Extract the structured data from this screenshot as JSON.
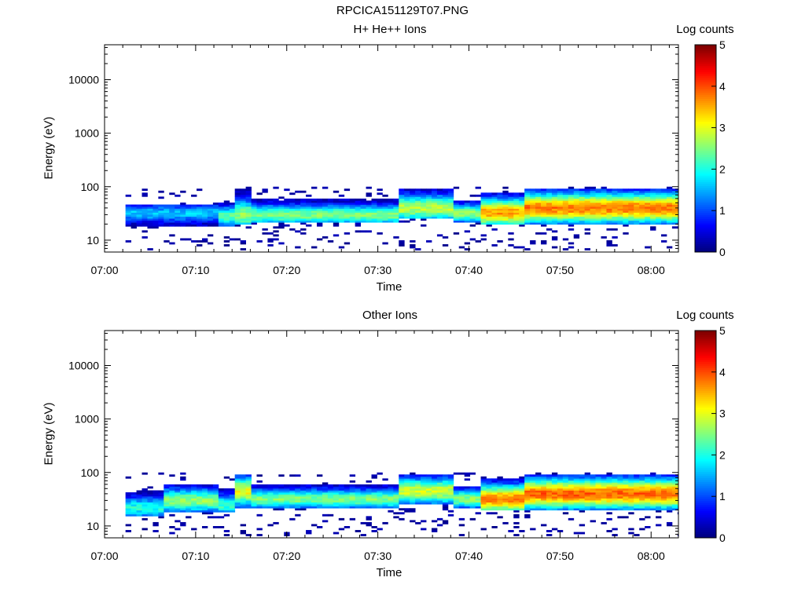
{
  "chart_data": [
    {
      "type": "heatmap",
      "figure_title": "RPCICA151129T07.PNG",
      "title": "H+ He++ Ions",
      "xlabel": "Time",
      "ylabel": "Energy (eV)",
      "colorbar_label": "Log counts",
      "x_ticks": [
        "07:00",
        "07:10",
        "07:20",
        "07:30",
        "07:40",
        "07:50",
        "08:00"
      ],
      "y_ticks": [
        "10",
        "100",
        "1000",
        "10000"
      ],
      "y_scale": "log",
      "ylim": [
        6,
        45000
      ],
      "xlim_minutes": [
        0,
        63
      ],
      "colorbar_ticks": [
        "0",
        "1",
        "2",
        "3",
        "4",
        "5"
      ],
      "clim": [
        0,
        5
      ],
      "segments": [
        {
          "t": [
            2.3,
            12
          ],
          "lo": 18,
          "hi": 45,
          "peak": 32,
          "max": 1.6
        },
        {
          "t": [
            12,
            14
          ],
          "lo": 18,
          "hi": 50,
          "peak": 28,
          "max": 2.3
        },
        {
          "t": [
            14,
            16
          ],
          "lo": 20,
          "hi": 90,
          "peak": 30,
          "max": 2.6
        },
        {
          "t": [
            16,
            32
          ],
          "lo": 22,
          "hi": 60,
          "peak": 30,
          "max": 2.5
        },
        {
          "t": [
            32,
            38
          ],
          "lo": 25,
          "hi": 95,
          "peak": 40,
          "max": 2.8
        },
        {
          "t": [
            38,
            41
          ],
          "lo": 22,
          "hi": 55,
          "peak": 32,
          "max": 2.6
        },
        {
          "t": [
            41,
            46
          ],
          "lo": 20,
          "hi": 80,
          "peak": 33,
          "max": 3.6
        },
        {
          "t": [
            46,
            63
          ],
          "lo": 20,
          "hi": 90,
          "peak": 40,
          "max": 3.8
        }
      ]
    },
    {
      "type": "heatmap",
      "title": "Other Ions",
      "xlabel": "Time",
      "ylabel": "Energy (eV)",
      "colorbar_label": "Log counts",
      "x_ticks": [
        "07:00",
        "07:10",
        "07:20",
        "07:30",
        "07:40",
        "07:50",
        "08:00"
      ],
      "y_ticks": [
        "10",
        "100",
        "1000",
        "10000"
      ],
      "y_scale": "log",
      "ylim": [
        6,
        45000
      ],
      "xlim_minutes": [
        0,
        63
      ],
      "colorbar_ticks": [
        "0",
        "1",
        "2",
        "3",
        "4",
        "5"
      ],
      "clim": [
        0,
        5
      ],
      "segments": [
        {
          "t": [
            2.3,
            6
          ],
          "lo": 15,
          "hi": 45,
          "peak": 22,
          "max": 2.0
        },
        {
          "t": [
            6,
            12
          ],
          "lo": 18,
          "hi": 60,
          "peak": 30,
          "max": 2.6
        },
        {
          "t": [
            12,
            14
          ],
          "lo": 18,
          "hi": 50,
          "peak": 25,
          "max": 2.2
        },
        {
          "t": [
            14,
            16
          ],
          "lo": 22,
          "hi": 95,
          "peak": 45,
          "max": 3.1
        },
        {
          "t": [
            16,
            32
          ],
          "lo": 22,
          "hi": 60,
          "peak": 32,
          "max": 2.5
        },
        {
          "t": [
            32,
            38
          ],
          "lo": 25,
          "hi": 95,
          "peak": 45,
          "max": 2.9
        },
        {
          "t": [
            38,
            41
          ],
          "lo": 22,
          "hi": 55,
          "peak": 32,
          "max": 2.6
        },
        {
          "t": [
            41,
            46
          ],
          "lo": 20,
          "hi": 80,
          "peak": 32,
          "max": 3.8
        },
        {
          "t": [
            46,
            63
          ],
          "lo": 20,
          "hi": 90,
          "peak": 40,
          "max": 3.9
        }
      ]
    }
  ]
}
